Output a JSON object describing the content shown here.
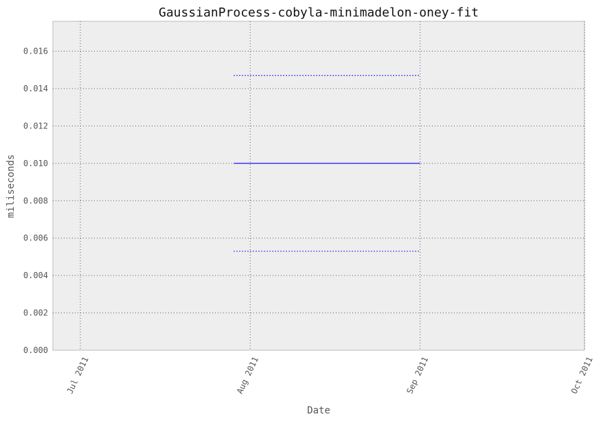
{
  "chart_data": {
    "type": "line",
    "title": "GaussianProcess-cobyla-minimadelon-oney-fit",
    "xlabel": "Date",
    "ylabel": "miliseconds",
    "x_axis_type": "date",
    "xlim": [
      "2011-06-26",
      "2011-10-01"
    ],
    "ylim": [
      0.0,
      0.0176
    ],
    "x_ticks": [
      {
        "date": "2011-07-01",
        "label": "Jul 2011"
      },
      {
        "date": "2011-08-01",
        "label": "Aug 2011"
      },
      {
        "date": "2011-09-01",
        "label": "Sep 2011"
      },
      {
        "date": "2011-10-01",
        "label": "Oct 2011"
      }
    ],
    "y_ticks": [
      {
        "value": 0.0,
        "label": "0.000"
      },
      {
        "value": 0.002,
        "label": "0.002"
      },
      {
        "value": 0.004,
        "label": "0.004"
      },
      {
        "value": 0.006,
        "label": "0.006"
      },
      {
        "value": 0.008,
        "label": "0.008"
      },
      {
        "value": 0.01,
        "label": "0.010"
      },
      {
        "value": 0.012,
        "label": "0.012"
      },
      {
        "value": 0.014,
        "label": "0.014"
      },
      {
        "value": 0.016,
        "label": "0.016"
      }
    ],
    "grid": true,
    "series": [
      {
        "style": "solid",
        "color": "#0000ff",
        "points": [
          {
            "x": "2011-07-29",
            "y": 0.01
          },
          {
            "x": "2011-09-01",
            "y": 0.01
          }
        ]
      },
      {
        "style": "dotted",
        "color": "#0000ff",
        "points": [
          {
            "x": "2011-07-29",
            "y": 0.0147
          },
          {
            "x": "2011-09-01",
            "y": 0.0147
          }
        ]
      },
      {
        "style": "dotted",
        "color": "#0000ff",
        "points": [
          {
            "x": "2011-07-29",
            "y": 0.0053
          },
          {
            "x": "2011-09-01",
            "y": 0.0053
          }
        ]
      }
    ]
  }
}
